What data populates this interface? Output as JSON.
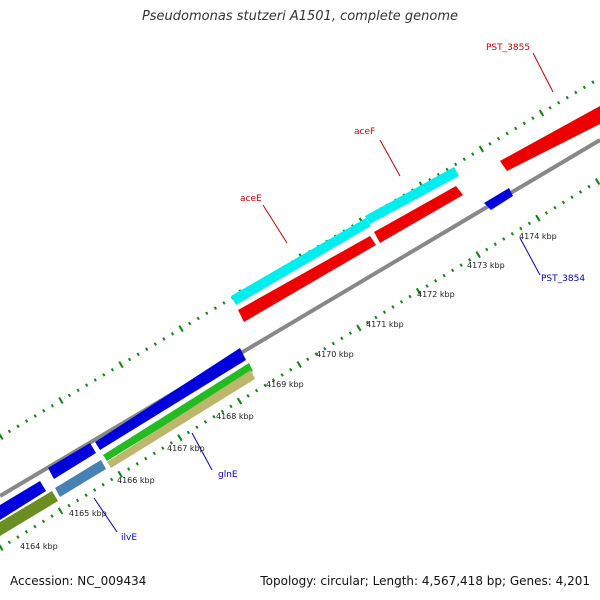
{
  "title": "Pseudomonas stutzeri A1501, complete genome",
  "footer": {
    "accession": "Accession: NC_009434",
    "summary": "Topology: circular; Length: 4,567,418 bp; Genes: 4,201"
  },
  "ticks": [
    "4164 kbp",
    "4165 kbp",
    "4166 kbp",
    "4167 kbp",
    "4168 kbp",
    "4169 kbp",
    "4170 kbp",
    "4171 kbp",
    "4172 kbp",
    "4173 kbp",
    "4174 kbp"
  ],
  "gene_labels": {
    "pst3855": "PST_3855",
    "acef": "aceF",
    "acee": "aceE",
    "pst3854": "PST_3854",
    "glne": "glnE",
    "ilve": "ilvE"
  },
  "colors": {
    "forward_label": "#cc0000",
    "reverse_label": "#0000cc",
    "red_gene": "#ee0000",
    "cyan_gene": "#00eeee",
    "blue_gene": "#0000dd",
    "green_gene": "#22bb22",
    "olive_gene": "#6b8e23",
    "khaki_gene": "#bdb76b",
    "steel_gene": "#4682b4",
    "backbone": "#888888",
    "tick": "#118811"
  }
}
